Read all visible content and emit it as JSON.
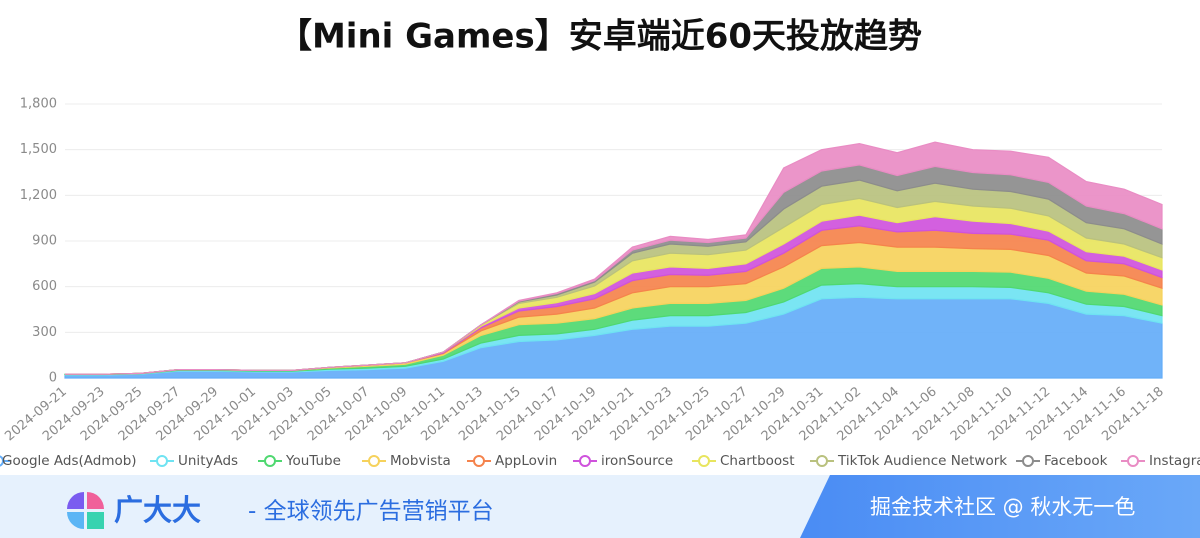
{
  "chart_data": {
    "type": "stacked-area",
    "title": "【Mini Games】安卓端近60天投放趋势",
    "categories": [
      "2024-09-21",
      "2024-09-23",
      "2024-09-25",
      "2024-09-27",
      "2024-09-29",
      "2024-10-01",
      "2024-10-03",
      "2024-10-05",
      "2024-10-07",
      "2024-10-09",
      "2024-10-11",
      "2024-10-13",
      "2024-10-15",
      "2024-10-17",
      "2024-10-19",
      "2024-10-21",
      "2024-10-23",
      "2024-10-25",
      "2024-10-27",
      "2024-10-29",
      "2024-10-31",
      "2024-11-02",
      "2024-11-04",
      "2024-11-06",
      "2024-11-08",
      "2024-11-10",
      "2024-11-12",
      "2024-11-14",
      "2024-11-16",
      "2024-11-18"
    ],
    "series": [
      {
        "name": "Google Ads(Admob)",
        "color": "#64adf8",
        "values": [
          20,
          20,
          25,
          45,
          45,
          40,
          40,
          50,
          55,
          65,
          110,
          200,
          240,
          250,
          280,
          320,
          340,
          340,
          360,
          420,
          520,
          530,
          520,
          520,
          520,
          520,
          490,
          420,
          410,
          360
        ]
      },
      {
        "name": "UnityAds",
        "color": "#6fe3f2",
        "values": [
          3,
          3,
          3,
          5,
          5,
          5,
          5,
          8,
          10,
          12,
          15,
          30,
          40,
          40,
          40,
          60,
          70,
          70,
          70,
          80,
          90,
          90,
          80,
          80,
          80,
          75,
          70,
          65,
          60,
          50
        ]
      },
      {
        "name": "YouTube",
        "color": "#4fd870",
        "values": [
          2,
          2,
          2,
          5,
          5,
          5,
          5,
          8,
          12,
          13,
          25,
          50,
          70,
          70,
          70,
          80,
          80,
          80,
          80,
          90,
          110,
          110,
          100,
          100,
          100,
          100,
          95,
          85,
          80,
          70
        ]
      },
      {
        "name": "Mobvista",
        "color": "#f6d25c",
        "values": [
          0,
          0,
          0,
          0,
          0,
          0,
          0,
          4,
          8,
          10,
          10,
          30,
          50,
          60,
          70,
          100,
          110,
          110,
          110,
          140,
          150,
          160,
          160,
          160,
          150,
          150,
          150,
          120,
          120,
          110
        ]
      },
      {
        "name": "AppLovin",
        "color": "#f5834c",
        "values": [
          0,
          0,
          0,
          0,
          0,
          0,
          0,
          0,
          0,
          0,
          5,
          20,
          40,
          50,
          60,
          80,
          80,
          75,
          80,
          90,
          100,
          110,
          100,
          110,
          100,
          100,
          100,
          80,
          80,
          70
        ]
      },
      {
        "name": "ironSource",
        "color": "#cf52dc",
        "values": [
          0,
          0,
          0,
          0,
          0,
          0,
          0,
          0,
          0,
          0,
          5,
          10,
          20,
          25,
          35,
          50,
          50,
          45,
          50,
          60,
          60,
          70,
          60,
          90,
          80,
          70,
          60,
          60,
          50,
          50
        ]
      },
      {
        "name": "Chartboost",
        "color": "#e8e55e",
        "values": [
          0,
          0,
          0,
          0,
          0,
          0,
          0,
          0,
          0,
          0,
          0,
          10,
          30,
          35,
          50,
          80,
          90,
          90,
          90,
          110,
          110,
          110,
          100,
          100,
          100,
          100,
          100,
          90,
          80,
          80
        ]
      },
      {
        "name": "TikTok Audience Network",
        "color": "#b9c17e",
        "values": [
          0,
          0,
          0,
          0,
          0,
          0,
          0,
          0,
          0,
          0,
          0,
          0,
          10,
          15,
          25,
          50,
          60,
          55,
          55,
          120,
          120,
          120,
          110,
          120,
          110,
          110,
          110,
          100,
          100,
          90
        ]
      },
      {
        "name": "Facebook",
        "color": "#8c8c8c",
        "values": [
          0,
          0,
          0,
          0,
          0,
          0,
          0,
          0,
          0,
          0,
          0,
          0,
          5,
          10,
          10,
          20,
          25,
          25,
          25,
          110,
          100,
          100,
          100,
          110,
          110,
          110,
          110,
          110,
          100,
          100
        ]
      },
      {
        "name": "Instagra",
        "color": "#e98cc4",
        "values": [
          0,
          0,
          0,
          0,
          0,
          0,
          0,
          0,
          0,
          0,
          0,
          0,
          5,
          5,
          10,
          20,
          25,
          20,
          20,
          160,
          140,
          140,
          150,
          160,
          150,
          155,
          165,
          160,
          160,
          160
        ]
      }
    ],
    "ylim": [
      0,
      1800
    ],
    "yticks": [
      0,
      300,
      600,
      900,
      {
        "value": 1200,
        "label": "1,200"
      },
      {
        "value": 1500,
        "label": "1,500"
      },
      {
        "value": 1800,
        "label": "1,800"
      }
    ],
    "grid": true
  },
  "footer": {
    "brand": "广大大",
    "slogan": "- 全球领先广告营销平台",
    "credit": "掘金技术社区 @ 秋水无一色"
  }
}
